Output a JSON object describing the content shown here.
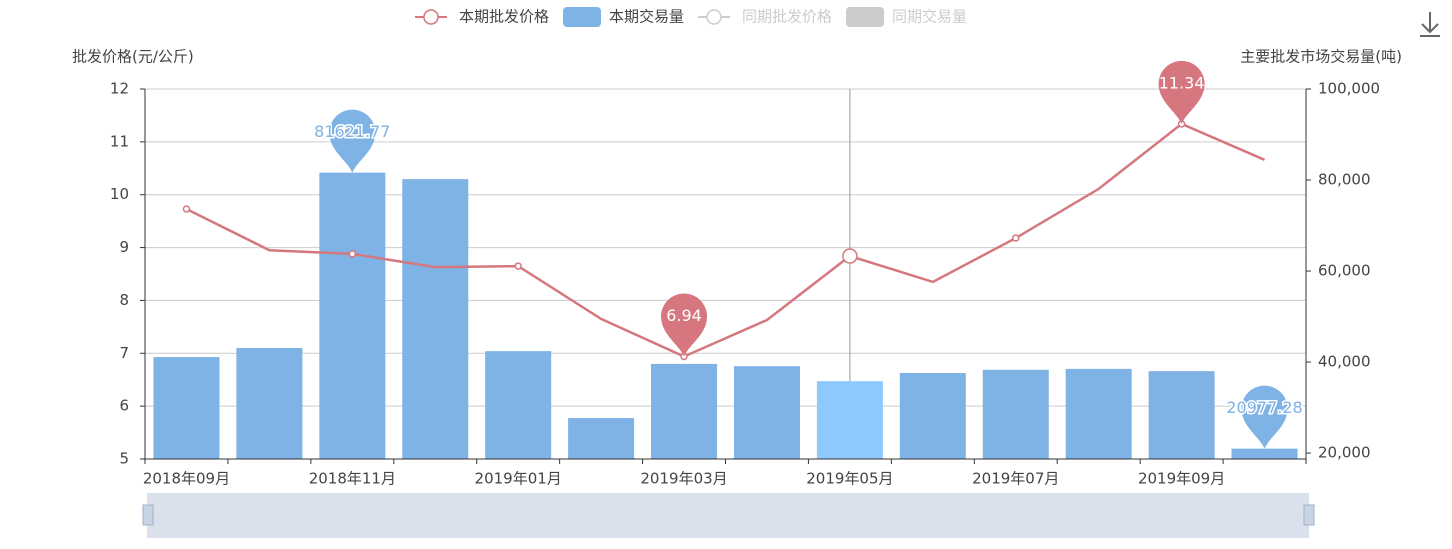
{
  "chart_data": {
    "type": "bar-line",
    "y_axis_label": "批发价格(元/公斤)",
    "y2_axis_label": "主要批发市场交易量(吨)",
    "categories": [
      "2018年09月",
      null,
      "2018年11月",
      null,
      "2019年01月",
      null,
      "2019年03月",
      null,
      "2019年05月",
      null,
      "2019年07月",
      null,
      "2019年09月",
      null
    ],
    "series": [
      {
        "name": "本期批发价格",
        "type": "line",
        "color": "#d6777f",
        "values": [
          9.73,
          8.95,
          8.88,
          8.63,
          8.65,
          7.65,
          6.94,
          7.63,
          8.84,
          8.35,
          9.18,
          10.11,
          11.34,
          10.66
        ]
      },
      {
        "name": "本期交易量",
        "type": "bar",
        "axis": "y2",
        "color": "#7fb2e5",
        "values": [
          41100,
          43100,
          81621.77,
          80200,
          42400,
          27700,
          39600,
          39100,
          35800,
          37600,
          38300,
          38500,
          38000,
          20977.28
        ]
      }
    ],
    "legend_inactive": [
      "同期批发价格",
      "同期交易量"
    ],
    "markers": [
      {
        "series": 1,
        "index": 2
      },
      {
        "series": 0,
        "index": 6
      },
      {
        "series": 0,
        "index": 12
      },
      {
        "series": 1,
        "index": 13
      }
    ],
    "hover_index": 8,
    "ylim": [
      5,
      12
    ],
    "yticks": [
      5,
      6,
      7,
      8,
      9,
      10,
      11,
      12
    ],
    "y2lim": [
      18700,
      100000
    ],
    "y2ticks": [
      {
        "value": 20000,
        "label": "20,000"
      },
      {
        "value": 40000,
        "label": "40,000"
      },
      {
        "value": 60000,
        "label": "60,000"
      },
      {
        "value": 80000,
        "label": "80,000"
      },
      {
        "value": 100000,
        "label": "100,000"
      }
    ],
    "grid": true
  }
}
